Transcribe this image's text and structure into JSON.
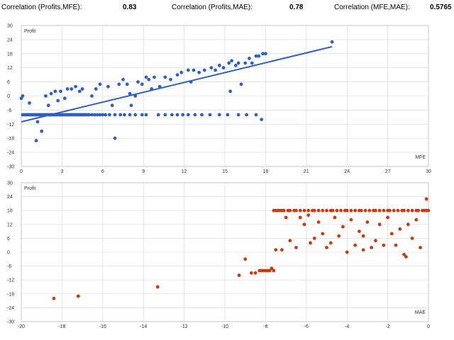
{
  "header": {
    "stats": [
      {
        "label": "Correlation (Profits,MFE):",
        "value": "0.83"
      },
      {
        "label": "Correlation (Profits,MAE):",
        "value": "0.78"
      },
      {
        "label": "Correlation (MFE,MAE):",
        "value": "0.5765"
      }
    ]
  },
  "colors": {
    "mfe_points": "#2f5fbf",
    "mae_points": "#c83a10",
    "grid": "#d6d6d6"
  },
  "chart_data": [
    {
      "type": "scatter",
      "ylabel": "Profit",
      "xlabel": "MFE",
      "xlim": [
        0,
        30
      ],
      "ylim": [
        -30,
        30
      ],
      "xticks": [
        0,
        3,
        6,
        9,
        12,
        15,
        18,
        21,
        24,
        27,
        30
      ],
      "yticks": [
        30,
        24,
        18,
        12,
        6,
        0,
        -6,
        -12,
        -18,
        -24,
        -30
      ],
      "grid": true,
      "trendline": {
        "x": [
          0,
          22.9
        ],
        "y": [
          -11,
          21
        ]
      },
      "points": [
        [
          0.0,
          -1
        ],
        [
          0.1,
          0
        ],
        [
          0.1,
          -8
        ],
        [
          0.2,
          -8
        ],
        [
          0.3,
          -8
        ],
        [
          0.4,
          -8
        ],
        [
          0.5,
          -8
        ],
        [
          0.6,
          -8
        ],
        [
          0.7,
          -8
        ],
        [
          0.8,
          -8
        ],
        [
          0.9,
          -8
        ],
        [
          1.0,
          -8
        ],
        [
          1.1,
          -8
        ],
        [
          1.2,
          -8
        ],
        [
          1.3,
          -8
        ],
        [
          1.4,
          -8
        ],
        [
          1.5,
          -8
        ],
        [
          1.6,
          -8
        ],
        [
          1.7,
          -8
        ],
        [
          1.8,
          -8
        ],
        [
          1.9,
          -8
        ],
        [
          2.0,
          -8
        ],
        [
          2.1,
          -8
        ],
        [
          2.2,
          -8
        ],
        [
          2.3,
          -8
        ],
        [
          2.4,
          -8
        ],
        [
          2.5,
          -8
        ],
        [
          2.6,
          -8
        ],
        [
          2.7,
          -8
        ],
        [
          2.8,
          -8
        ],
        [
          2.9,
          -8
        ],
        [
          3.0,
          -8
        ],
        [
          3.1,
          -8
        ],
        [
          3.2,
          -8
        ],
        [
          3.3,
          -8
        ],
        [
          3.4,
          -8
        ],
        [
          3.5,
          -8
        ],
        [
          3.6,
          -8
        ],
        [
          3.7,
          -8
        ],
        [
          3.8,
          -8
        ],
        [
          3.9,
          -8
        ],
        [
          4.0,
          -8
        ],
        [
          4.1,
          -8
        ],
        [
          4.2,
          -8
        ],
        [
          4.3,
          -8
        ],
        [
          4.4,
          -8
        ],
        [
          4.5,
          -8
        ],
        [
          4.6,
          -8
        ],
        [
          4.7,
          -8
        ],
        [
          4.8,
          -8
        ],
        [
          4.9,
          -8
        ],
        [
          5.0,
          -8
        ],
        [
          5.2,
          -8
        ],
        [
          5.4,
          -8
        ],
        [
          5.6,
          -8
        ],
        [
          5.8,
          -8
        ],
        [
          6.0,
          -8
        ],
        [
          6.2,
          -8
        ],
        [
          6.5,
          -8
        ],
        [
          6.9,
          -8
        ],
        [
          7.3,
          -8
        ],
        [
          7.6,
          -8
        ],
        [
          8.0,
          -8
        ],
        [
          8.4,
          -8
        ],
        [
          8.9,
          -8
        ],
        [
          9.2,
          -8
        ],
        [
          10.1,
          -8
        ],
        [
          10.6,
          -8
        ],
        [
          11.1,
          -8
        ],
        [
          11.5,
          -8
        ],
        [
          11.9,
          -8
        ],
        [
          12.3,
          -8
        ],
        [
          12.8,
          -8
        ],
        [
          13.3,
          -8
        ],
        [
          13.9,
          -8
        ],
        [
          14.6,
          -8
        ],
        [
          15.2,
          -8
        ],
        [
          16.0,
          -8
        ],
        [
          16.6,
          -8
        ],
        [
          17.3,
          -8
        ],
        [
          0.6,
          -3
        ],
        [
          1.1,
          -19
        ],
        [
          1.2,
          -11
        ],
        [
          1.5,
          -15
        ],
        [
          1.8,
          0
        ],
        [
          2.0,
          -4
        ],
        [
          2.2,
          1
        ],
        [
          2.5,
          2
        ],
        [
          2.7,
          -2
        ],
        [
          2.9,
          2
        ],
        [
          3.2,
          -1
        ],
        [
          3.4,
          3
        ],
        [
          3.7,
          3
        ],
        [
          4.0,
          4
        ],
        [
          4.3,
          2
        ],
        [
          4.5,
          3
        ],
        [
          5.2,
          0
        ],
        [
          5.5,
          3
        ],
        [
          5.8,
          5
        ],
        [
          6.4,
          4
        ],
        [
          6.7,
          -4
        ],
        [
          6.9,
          -18
        ],
        [
          7.2,
          5
        ],
        [
          7.5,
          7
        ],
        [
          7.8,
          5
        ],
        [
          8.0,
          1
        ],
        [
          8.1,
          -4
        ],
        [
          8.4,
          0
        ],
        [
          8.6,
          6
        ],
        [
          8.9,
          5
        ],
        [
          9.2,
          8
        ],
        [
          9.4,
          7
        ],
        [
          9.6,
          3
        ],
        [
          9.8,
          8
        ],
        [
          10.2,
          4
        ],
        [
          10.6,
          8
        ],
        [
          11.0,
          7
        ],
        [
          11.5,
          9
        ],
        [
          11.8,
          10
        ],
        [
          12.3,
          11
        ],
        [
          12.5,
          6
        ],
        [
          12.7,
          11
        ],
        [
          13.1,
          10
        ],
        [
          13.5,
          11
        ],
        [
          14.0,
          12
        ],
        [
          14.3,
          11
        ],
        [
          14.6,
          13
        ],
        [
          14.9,
          12
        ],
        [
          15.3,
          14
        ],
        [
          15.5,
          15
        ],
        [
          15.8,
          13
        ],
        [
          16.0,
          14
        ],
        [
          16.2,
          5
        ],
        [
          16.5,
          14
        ],
        [
          16.8,
          16
        ],
        [
          17.0,
          14
        ],
        [
          17.3,
          17
        ],
        [
          17.5,
          17
        ],
        [
          17.8,
          18
        ],
        [
          18.0,
          18
        ],
        [
          17.7,
          -10
        ],
        [
          15.4,
          2
        ],
        [
          22.9,
          23
        ]
      ]
    },
    {
      "type": "scatter",
      "ylabel": "Profit",
      "xlabel": "MAE",
      "xlim": [
        -20,
        0
      ],
      "ylim": [
        -30,
        30
      ],
      "xticks": [
        -20,
        -18,
        -16,
        -14,
        -12,
        -10,
        -8,
        -6,
        -4,
        -2,
        0
      ],
      "yticks": [
        30,
        24,
        18,
        12,
        6,
        0,
        -6,
        -12,
        -18,
        -24,
        -30
      ],
      "grid": true,
      "points": [
        [
          -18.4,
          -20
        ],
        [
          -17.2,
          -19
        ],
        [
          -13.3,
          -15
        ],
        [
          -9.3,
          -10
        ],
        [
          -9.0,
          -3
        ],
        [
          -8.7,
          -9
        ],
        [
          -8.5,
          -9
        ],
        [
          -8.3,
          -8
        ],
        [
          -8.2,
          -8
        ],
        [
          -8.1,
          -8
        ],
        [
          -8.0,
          -8
        ],
        [
          -7.9,
          -8
        ],
        [
          -7.8,
          -8
        ],
        [
          -7.7,
          -7
        ],
        [
          -7.6,
          18
        ],
        [
          -7.5,
          18
        ],
        [
          -7.4,
          18
        ],
        [
          -7.3,
          18
        ],
        [
          -7.2,
          18
        ],
        [
          -7.1,
          18
        ],
        [
          -6.9,
          18
        ],
        [
          -6.8,
          18
        ],
        [
          -6.6,
          18
        ],
        [
          -6.5,
          18
        ],
        [
          -6.3,
          18
        ],
        [
          -6.1,
          18
        ],
        [
          -5.9,
          18
        ],
        [
          -5.7,
          18
        ],
        [
          -5.6,
          18
        ],
        [
          -5.4,
          18
        ],
        [
          -5.2,
          18
        ],
        [
          -5.0,
          18
        ],
        [
          -4.8,
          18
        ],
        [
          -4.7,
          18
        ],
        [
          -4.5,
          18
        ],
        [
          -4.3,
          18
        ],
        [
          -4.1,
          18
        ],
        [
          -4.0,
          18
        ],
        [
          -3.8,
          18
        ],
        [
          -3.6,
          18
        ],
        [
          -3.4,
          18
        ],
        [
          -3.3,
          18
        ],
        [
          -3.1,
          18
        ],
        [
          -2.9,
          18
        ],
        [
          -2.7,
          18
        ],
        [
          -2.6,
          18
        ],
        [
          -2.4,
          18
        ],
        [
          -2.2,
          18
        ],
        [
          -2.0,
          18
        ],
        [
          -1.9,
          18
        ],
        [
          -1.7,
          18
        ],
        [
          -1.5,
          18
        ],
        [
          -1.3,
          18
        ],
        [
          -1.2,
          18
        ],
        [
          -1.0,
          18
        ],
        [
          -0.8,
          18
        ],
        [
          -0.6,
          18
        ],
        [
          -0.5,
          18
        ],
        [
          -0.3,
          18
        ],
        [
          -0.2,
          18
        ],
        [
          -0.1,
          18
        ],
        [
          0.0,
          18
        ],
        [
          -7.5,
          1
        ],
        [
          -7.2,
          1
        ],
        [
          -7.0,
          15
        ],
        [
          -6.8,
          5
        ],
        [
          -6.5,
          2
        ],
        [
          -6.3,
          15
        ],
        [
          -6.1,
          12
        ],
        [
          -5.8,
          4
        ],
        [
          -5.6,
          6
        ],
        [
          -5.4,
          13
        ],
        [
          -5.2,
          8
        ],
        [
          -5.0,
          2
        ],
        [
          -4.8,
          4
        ],
        [
          -4.6,
          15
        ],
        [
          -4.4,
          7
        ],
        [
          -4.2,
          11
        ],
        [
          -4.0,
          0
        ],
        [
          -3.8,
          14
        ],
        [
          -3.6,
          3
        ],
        [
          -3.4,
          9
        ],
        [
          -3.2,
          1
        ],
        [
          -3.0,
          13
        ],
        [
          -2.8,
          2
        ],
        [
          -2.6,
          5
        ],
        [
          -2.4,
          12
        ],
        [
          -2.2,
          3
        ],
        [
          -2.0,
          15
        ],
        [
          -1.8,
          8
        ],
        [
          -1.6,
          3
        ],
        [
          -1.4,
          10
        ],
        [
          -1.2,
          -1
        ],
        [
          -1.0,
          12
        ],
        [
          -0.8,
          6
        ],
        [
          -0.6,
          14
        ],
        [
          -0.4,
          2
        ],
        [
          -1.1,
          -2
        ],
        [
          -5.9,
          16
        ],
        [
          -3.2,
          7
        ],
        [
          -0.1,
          23
        ],
        [
          -7.6,
          -8
        ]
      ]
    }
  ]
}
